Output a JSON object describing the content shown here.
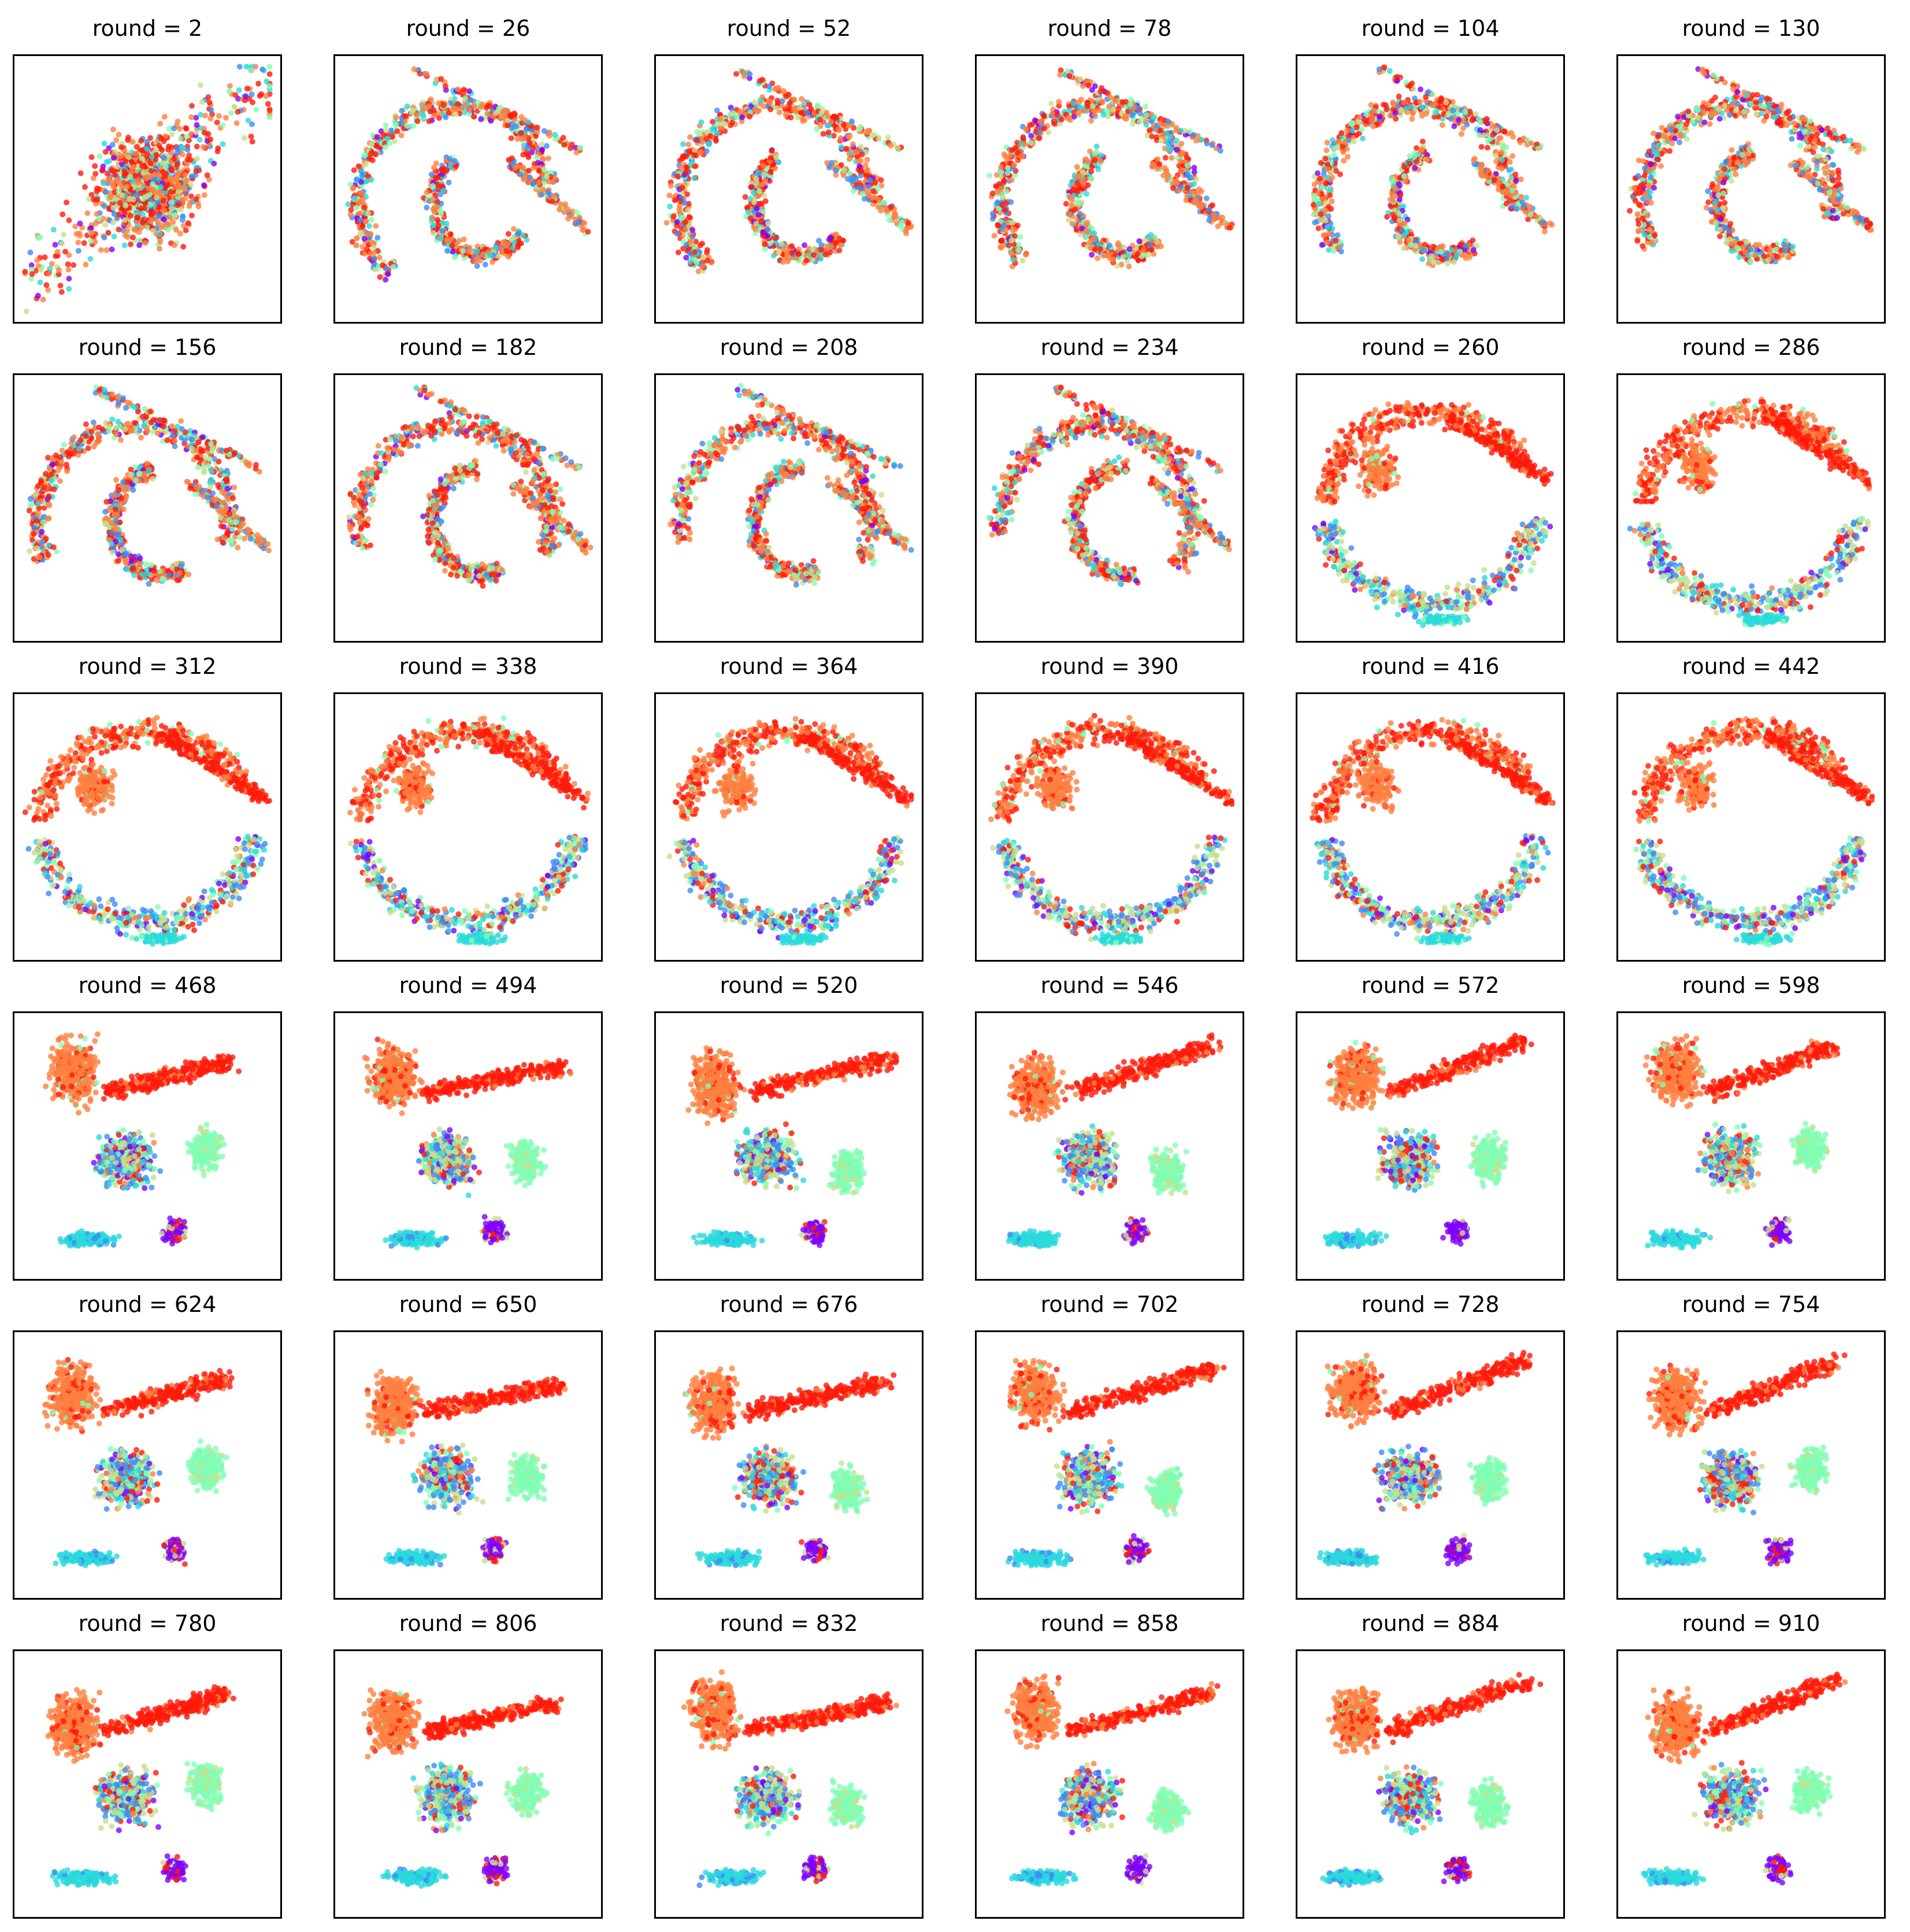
{
  "chart_data": {
    "type": "scatter",
    "description_free": true,
    "grid_rows": 6,
    "grid_cols": 6,
    "grid": false,
    "colors": {
      "purple": "#8000ff",
      "blue": "#3f8cf5",
      "cyan": "#2ad9dc",
      "mint": "#80ffb4",
      "olive": "#c8de8c",
      "orange": "#ff8040",
      "red": "#ff1a0a",
      "frame": "#000000",
      "title": "#000000"
    },
    "panels": [
      {
        "title": "round = 2"
      },
      {
        "title": "round = 26"
      },
      {
        "title": "round = 52"
      },
      {
        "title": "round = 78"
      },
      {
        "title": "round = 104"
      },
      {
        "title": "round = 130"
      },
      {
        "title": "round = 156"
      },
      {
        "title": "round = 182"
      },
      {
        "title": "round = 208"
      },
      {
        "title": "round = 234"
      },
      {
        "title": "round = 260"
      },
      {
        "title": "round = 286"
      },
      {
        "title": "round = 312"
      },
      {
        "title": "round = 338"
      },
      {
        "title": "round = 364"
      },
      {
        "title": "round = 390"
      },
      {
        "title": "round = 416"
      },
      {
        "title": "round = 442"
      },
      {
        "title": "round = 468"
      },
      {
        "title": "round = 494"
      },
      {
        "title": "round = 520"
      },
      {
        "title": "round = 546"
      },
      {
        "title": "round = 572"
      },
      {
        "title": "round = 598"
      },
      {
        "title": "round = 624"
      },
      {
        "title": "round = 650"
      },
      {
        "title": "round = 676"
      },
      {
        "title": "round = 702"
      },
      {
        "title": "round = 728"
      },
      {
        "title": "round = 754"
      },
      {
        "title": "round = 780"
      },
      {
        "title": "round = 806"
      },
      {
        "title": "round = 832"
      },
      {
        "title": "round = 858"
      },
      {
        "title": "round = 884"
      },
      {
        "title": "round = 910"
      }
    ]
  }
}
